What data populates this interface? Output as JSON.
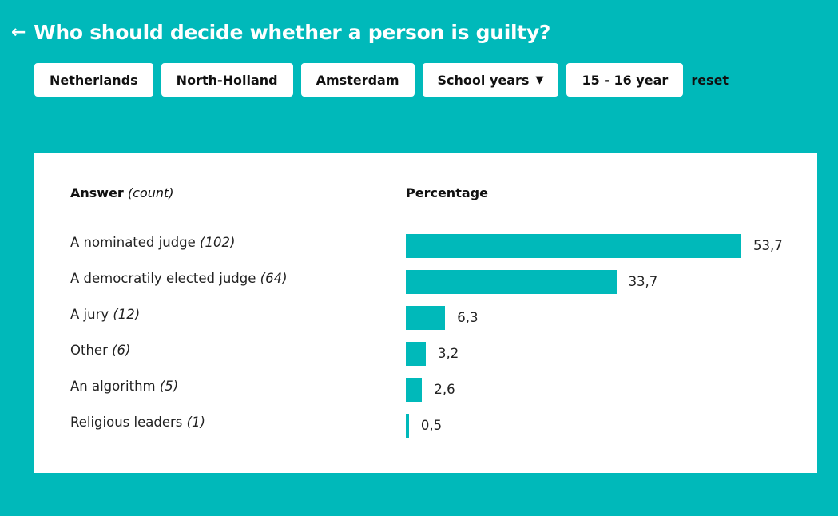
{
  "header": {
    "title": "Who should decide whether a person is guilty?",
    "back_icon": "arrow-left-icon"
  },
  "filters": [
    {
      "label": "Netherlands"
    },
    {
      "label": "North-Holland"
    },
    {
      "label": "Amsterdam"
    },
    {
      "label": "School years",
      "icon": "filter-icon"
    },
    {
      "label": "15 - 16 year"
    }
  ],
  "reset_label": "reset",
  "colors": {
    "background": "#00b9ba",
    "bar": "#00b9ba",
    "card": "#ffffff"
  },
  "chart_data": {
    "type": "bar",
    "orientation": "horizontal",
    "column_headers": {
      "answer": "Answer",
      "count": "(count)",
      "percentage": "Percentage"
    },
    "categories": [
      "A nominated judge",
      "A democratily elected judge",
      "A jury",
      "Other",
      "An algorithm",
      "Religious leaders"
    ],
    "counts": [
      "(102)",
      "(64)",
      "(12)",
      "(6)",
      "(5)",
      "(1)"
    ],
    "values": [
      53.7,
      33.7,
      6.3,
      3.2,
      2.6,
      0.5
    ],
    "value_labels": [
      "53,7",
      "33,7",
      "6,3",
      "3,2",
      "2,6",
      "0,5"
    ]
  }
}
